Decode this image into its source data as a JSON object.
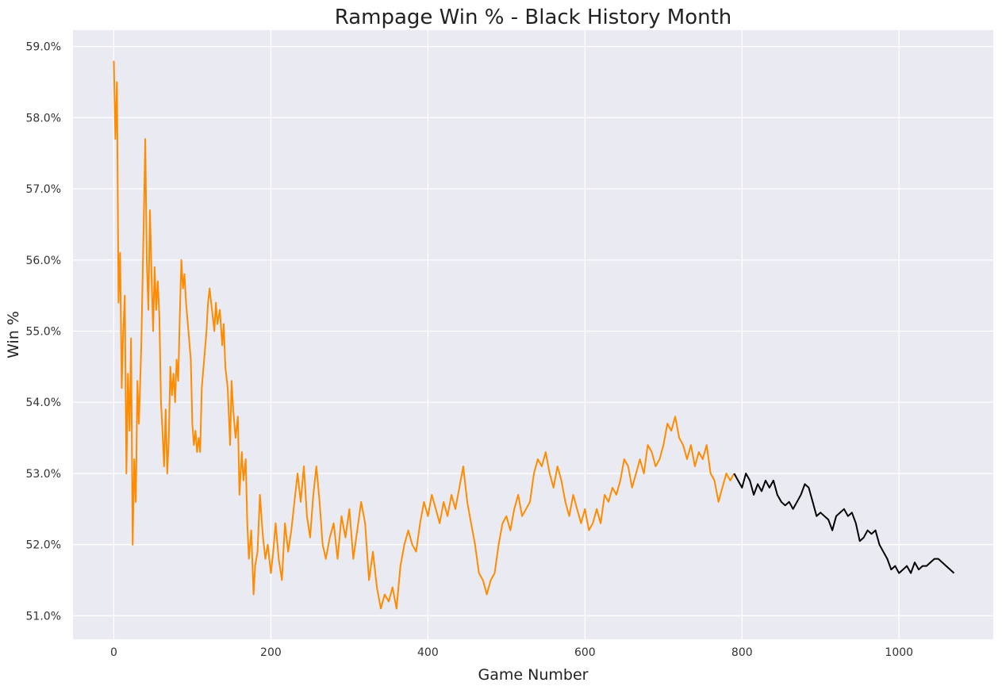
{
  "chart_data": {
    "type": "line",
    "title": "Rampage Win % - Black History Month",
    "xlabel": "Game Number",
    "ylabel": "Win %",
    "xlim": [
      -52,
      1120
    ],
    "ylim": [
      50.67,
      59.23
    ],
    "grid": true,
    "x_ticks": [
      0,
      200,
      400,
      600,
      800,
      1000
    ],
    "x_tick_labels": [
      "0",
      "200",
      "400",
      "600",
      "800",
      "1000"
    ],
    "y_ticks": [
      51,
      52,
      53,
      54,
      55,
      56,
      57,
      58,
      59
    ],
    "y_tick_labels": [
      "51.0%",
      "52.0%",
      "53.0%",
      "54.0%",
      "55.0%",
      "56.0%",
      "57.0%",
      "58.0%",
      "59.0%"
    ],
    "series": [
      {
        "color": "#ff8c00",
        "x": [
          0,
          2,
          4,
          6,
          8,
          10,
          12,
          14,
          16,
          18,
          20,
          22,
          24,
          26,
          28,
          30,
          32,
          35,
          38,
          40,
          42,
          44,
          46,
          48,
          50,
          52,
          54,
          56,
          58,
          60,
          62,
          64,
          66,
          68,
          70,
          72,
          74,
          76,
          78,
          80,
          82,
          84,
          86,
          88,
          90,
          92,
          95,
          98,
          100,
          102,
          104,
          106,
          108,
          110,
          112,
          115,
          118,
          120,
          122,
          125,
          128,
          130,
          132,
          135,
          138,
          140,
          142,
          145,
          148,
          150,
          152,
          155,
          158,
          160,
          163,
          165,
          168,
          170,
          172,
          175,
          178,
          180,
          183,
          186,
          190,
          193,
          196,
          200,
          203,
          206,
          210,
          214,
          218,
          222,
          226,
          230,
          234,
          238,
          242,
          246,
          250,
          254,
          258,
          262,
          266,
          270,
          275,
          280,
          285,
          290,
          295,
          300,
          305,
          310,
          315,
          320,
          325,
          330,
          335,
          340,
          345,
          350,
          355,
          360,
          365,
          370,
          375,
          380,
          385,
          390,
          395,
          400,
          405,
          410,
          415,
          420,
          425,
          430,
          435,
          440,
          445,
          450,
          455,
          460,
          465,
          470,
          475,
          480,
          485,
          490,
          495,
          500,
          505,
          510,
          515,
          520,
          525,
          530,
          535,
          540,
          545,
          550,
          555,
          560,
          565,
          570,
          575,
          580,
          585,
          590,
          595,
          600,
          605,
          610,
          615,
          620,
          625,
          630,
          635,
          640,
          645,
          650,
          655,
          660,
          665,
          670,
          675,
          680,
          685,
          690,
          695,
          700,
          705,
          710,
          715,
          720,
          725,
          730,
          735,
          740,
          745,
          750,
          755,
          760,
          765,
          770,
          775,
          780,
          785,
          790
        ],
        "y": [
          58.8,
          57.7,
          58.5,
          55.4,
          56.1,
          54.2,
          55.0,
          55.5,
          53.0,
          54.4,
          53.6,
          54.9,
          52.0,
          53.2,
          52.6,
          54.3,
          53.7,
          54.8,
          56.5,
          57.7,
          56.0,
          55.3,
          56.7,
          55.8,
          55.0,
          55.9,
          55.3,
          55.7,
          55.2,
          54.0,
          53.6,
          53.1,
          53.9,
          53.0,
          53.5,
          54.5,
          54.1,
          54.4,
          54.0,
          54.6,
          54.3,
          55.2,
          56.0,
          55.6,
          55.8,
          55.4,
          55.0,
          54.6,
          53.7,
          53.4,
          53.6,
          53.3,
          53.5,
          53.3,
          54.2,
          54.6,
          55.0,
          55.4,
          55.6,
          55.3,
          55.0,
          55.4,
          55.1,
          55.3,
          54.8,
          55.1,
          54.5,
          54.2,
          53.4,
          54.3,
          53.9,
          53.5,
          53.8,
          52.7,
          53.3,
          52.9,
          53.2,
          52.3,
          51.8,
          52.2,
          51.3,
          51.7,
          51.9,
          52.7,
          52.1,
          51.8,
          52.0,
          51.6,
          51.9,
          52.3,
          51.8,
          51.5,
          52.3,
          51.9,
          52.2,
          52.6,
          53.0,
          52.6,
          53.1,
          52.4,
          52.1,
          52.7,
          53.1,
          52.6,
          52.0,
          51.8,
          52.1,
          52.3,
          51.8,
          52.4,
          52.1,
          52.5,
          51.8,
          52.2,
          52.6,
          52.3,
          51.5,
          51.9,
          51.4,
          51.1,
          51.3,
          51.2,
          51.4,
          51.1,
          51.7,
          52.0,
          52.2,
          52.0,
          51.9,
          52.3,
          52.6,
          52.4,
          52.7,
          52.5,
          52.3,
          52.6,
          52.4,
          52.7,
          52.5,
          52.8,
          53.1,
          52.6,
          52.3,
          52.0,
          51.6,
          51.5,
          51.3,
          51.5,
          51.6,
          52.0,
          52.3,
          52.4,
          52.2,
          52.5,
          52.7,
          52.4,
          52.5,
          52.6,
          53.0,
          53.2,
          53.1,
          53.3,
          53.0,
          52.8,
          53.1,
          52.9,
          52.6,
          52.4,
          52.7,
          52.5,
          52.3,
          52.5,
          52.2,
          52.3,
          52.5,
          52.3,
          52.7,
          52.6,
          52.8,
          52.7,
          52.9,
          53.2,
          53.1,
          52.8,
          53.0,
          53.2,
          53.0,
          53.4,
          53.3,
          53.1,
          53.2,
          53.4,
          53.7,
          53.6,
          53.8,
          53.5,
          53.4,
          53.2,
          53.4,
          53.1,
          53.3,
          53.2,
          53.4,
          53.0,
          52.9,
          52.6,
          52.8,
          53.0,
          52.9,
          53.0
        ]
      },
      {
        "color": "#000000",
        "x": [
          790,
          795,
          800,
          805,
          810,
          815,
          820,
          825,
          830,
          835,
          840,
          845,
          850,
          855,
          860,
          865,
          870,
          875,
          880,
          885,
          890,
          895,
          900,
          905,
          910,
          915,
          920,
          925,
          930,
          935,
          940,
          945,
          950,
          955,
          960,
          965,
          970,
          975,
          980,
          985,
          990,
          995,
          1000,
          1005,
          1010,
          1015,
          1020,
          1025,
          1030,
          1035,
          1040,
          1045,
          1050,
          1055,
          1060,
          1065,
          1070
        ],
        "y": [
          53.0,
          52.9,
          52.8,
          53.0,
          52.9,
          52.7,
          52.85,
          52.75,
          52.9,
          52.8,
          52.9,
          52.7,
          52.6,
          52.55,
          52.6,
          52.5,
          52.6,
          52.7,
          52.85,
          52.8,
          52.6,
          52.4,
          52.45,
          52.4,
          52.35,
          52.2,
          52.4,
          52.45,
          52.5,
          52.4,
          52.45,
          52.3,
          52.05,
          52.1,
          52.2,
          52.15,
          52.2,
          52.0,
          51.9,
          51.8,
          51.65,
          51.7,
          51.6,
          51.65,
          51.7,
          51.6,
          51.75,
          51.65,
          51.7,
          51.7,
          51.75,
          51.8,
          51.8,
          51.75,
          51.7,
          51.65,
          51.6
        ]
      }
    ]
  }
}
